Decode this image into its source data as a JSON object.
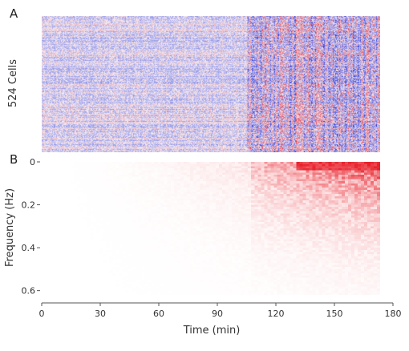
{
  "chart_data": [
    {
      "panel": "A",
      "type": "heatmap",
      "ylabel": "524 Cells",
      "rows": 524,
      "colormap": [
        "#1f2bd8",
        "#f2f0f8",
        "#e8202a"
      ],
      "xlim": [
        0,
        172
      ],
      "activity_onset_min": 105
    },
    {
      "panel": "B",
      "type": "heatmap",
      "xlabel": "Time (min)",
      "ylabel": "Frequency (Hz)",
      "xticks": [
        0,
        30,
        60,
        90,
        120,
        150,
        180
      ],
      "yticks": [
        0,
        0.2,
        0.4,
        0.6
      ],
      "xlim": [
        0,
        172
      ],
      "ylim": [
        0,
        0.62
      ],
      "colormap": [
        "#ffffff",
        "#e8202a"
      ],
      "activity_onset_min": 105
    }
  ]
}
